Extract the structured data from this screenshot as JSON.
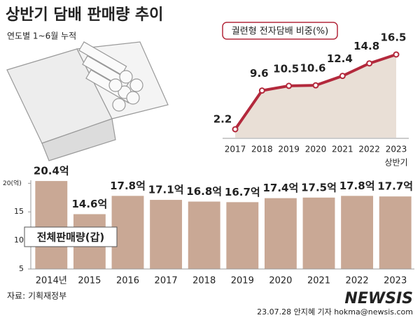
{
  "header": {
    "title": "상반기 담배 판매량 추이",
    "subtitle": "연도별 1~6월 누적"
  },
  "chart_data": [
    {
      "type": "line",
      "title": "궐련형 전자담배 비중(%)",
      "categories": [
        "2017",
        "2018",
        "2019",
        "2020",
        "2021",
        "2022",
        "2023"
      ],
      "values": [
        2.2,
        9.6,
        10.5,
        10.6,
        12.4,
        14.8,
        16.5
      ],
      "annotation": "상반기",
      "color": "#b3293c",
      "area_color": "#e9dfd6"
    },
    {
      "type": "bar",
      "series_name": "전체판매량(갑)",
      "categories": [
        "2014년",
        "2015",
        "2016",
        "2017",
        "2018",
        "2019",
        "2020",
        "2021",
        "2022",
        "2023"
      ],
      "values": [
        20.4,
        14.6,
        17.8,
        17.1,
        16.8,
        16.7,
        17.4,
        17.5,
        17.8,
        17.7
      ],
      "value_labels": [
        "20.4억",
        "14.6억",
        "17.8억",
        "17.1억",
        "16.8억",
        "16.7억",
        "17.4억",
        "17.5억",
        "17.8억",
        "17.7억"
      ],
      "color": "#c9a895",
      "ylim": [
        5,
        22
      ],
      "yticks": [
        5,
        10,
        15,
        {
          "value": 20,
          "label": "20(억)"
        }
      ]
    }
  ],
  "footer": {
    "source": "자료: 기획재정부",
    "logo": "NEWSIS",
    "credit": "23.07.28 안지혜 기자 hokma@newsis.com"
  }
}
